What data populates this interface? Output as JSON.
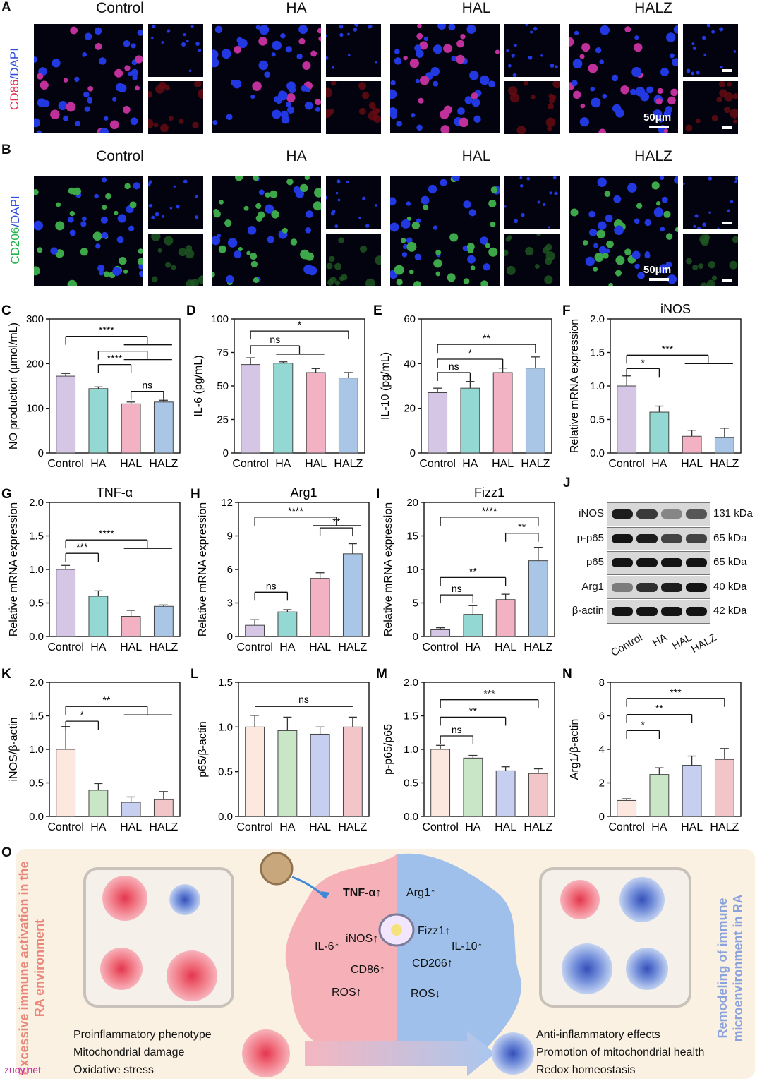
{
  "panelA": {
    "letter": "A",
    "groups": [
      "Control",
      "HA",
      "HAL",
      "HALZ"
    ],
    "stain_red": "CD86",
    "stain_sep": "/",
    "stain_blue": "DAPI",
    "scalebar": "50μm",
    "colors": {
      "red": "#e03050",
      "blue": "#2f4fe0"
    }
  },
  "panelB": {
    "letter": "B",
    "groups": [
      "Control",
      "HA",
      "HAL",
      "HALZ"
    ],
    "stain_green": "CD206",
    "stain_sep": "/",
    "stain_blue": "DAPI",
    "scalebar": "50μm",
    "colors": {
      "green": "#22b34a",
      "blue": "#2f4fe0"
    }
  },
  "charts": [
    {
      "id": "C",
      "letter": "C",
      "type": "bar",
      "title": "",
      "ylabel": "NO production (μmol/mL)",
      "categories": [
        "Control",
        "HA",
        "HAL",
        "HALZ"
      ],
      "values": [
        172,
        144,
        110,
        114
      ],
      "errors": [
        6,
        4,
        4,
        4
      ],
      "ylim": [
        0,
        300
      ],
      "yticks": [
        0,
        100,
        200,
        300
      ],
      "colors": [
        "#d6c6e6",
        "#93d8d2",
        "#f3b2c4",
        "#a9c6e6"
      ],
      "sig": [
        {
          "from": 0,
          "to": [
            2,
            3
          ],
          "label": "****",
          "level": 0.87
        },
        {
          "from": 1,
          "to": [
            2,
            3
          ],
          "label": "",
          "level": 0.76
        },
        {
          "from": 1,
          "to": [
            2
          ],
          "label": "****",
          "level": 0.66
        },
        {
          "from": 2,
          "to": [
            3
          ],
          "label": "ns",
          "level": 0.46
        }
      ]
    },
    {
      "id": "D",
      "letter": "D",
      "type": "bar",
      "title": "",
      "ylabel": "IL-6 (pg/mL)",
      "categories": [
        "Control",
        "HA",
        "HAL",
        "HALZ"
      ],
      "values": [
        66,
        67,
        60,
        56
      ],
      "errors": [
        5,
        1,
        3,
        4
      ],
      "ylim": [
        0,
        100
      ],
      "yticks": [
        0,
        25,
        50,
        75,
        100
      ],
      "colors": [
        "#d6c6e6",
        "#93d8d2",
        "#f3b2c4",
        "#a9c6e6"
      ],
      "sig": [
        {
          "from": 0,
          "to": [
            3
          ],
          "label": "*",
          "level": 0.91
        },
        {
          "from": 0,
          "to": [
            1,
            2
          ],
          "label": "ns",
          "level": 0.8
        }
      ]
    },
    {
      "id": "E",
      "letter": "E",
      "type": "bar",
      "title": "",
      "ylabel": "IL-10 (pg/mL)",
      "categories": [
        "Control",
        "HA",
        "HAL",
        "HALZ"
      ],
      "values": [
        27,
        29,
        36,
        38
      ],
      "errors": [
        2,
        3,
        2,
        5
      ],
      "ylim": [
        0,
        60
      ],
      "yticks": [
        0,
        20,
        40,
        60
      ],
      "colors": [
        "#d6c6e6",
        "#93d8d2",
        "#f3b2c4",
        "#a9c6e6"
      ],
      "sig": [
        {
          "from": 0,
          "to": [
            3
          ],
          "label": "**",
          "level": 0.81
        },
        {
          "from": 0,
          "to": [
            2
          ],
          "label": "*",
          "level": 0.7
        },
        {
          "from": 0,
          "to": [
            1
          ],
          "label": "ns",
          "level": 0.6
        }
      ]
    },
    {
      "id": "F",
      "letter": "F",
      "type": "bar",
      "title": "iNOS",
      "ylabel": "Relative mRNA expression",
      "categories": [
        "Control",
        "HA",
        "HAL",
        "HALZ"
      ],
      "values": [
        1.0,
        0.61,
        0.25,
        0.23
      ],
      "errors": [
        0.15,
        0.09,
        0.09,
        0.14
      ],
      "ylim": [
        0,
        2.0
      ],
      "yticks": [
        0.0,
        0.5,
        1.0,
        1.5,
        2.0
      ],
      "colors": [
        "#d6c6e6",
        "#93d8d2",
        "#f3b2c4",
        "#a9c6e6"
      ],
      "sig": [
        {
          "from": 0,
          "to": [
            2,
            3
          ],
          "label": "***",
          "level": 0.73
        },
        {
          "from": 0,
          "to": [
            1
          ],
          "label": "*",
          "level": 0.63
        }
      ]
    },
    {
      "id": "G",
      "letter": "G",
      "type": "bar",
      "title": "TNF-α",
      "ylabel": "Relative mRNA expression",
      "categories": [
        "Control",
        "HA",
        "HAL",
        "HALZ"
      ],
      "values": [
        1.0,
        0.6,
        0.3,
        0.45
      ],
      "errors": [
        0.06,
        0.08,
        0.09,
        0.02
      ],
      "ylim": [
        0,
        2.0
      ],
      "yticks": [
        0.0,
        0.5,
        1.0,
        1.5,
        2.0
      ],
      "colors": [
        "#d6c6e6",
        "#93d8d2",
        "#f3b2c4",
        "#a9c6e6"
      ],
      "sig": [
        {
          "from": 0,
          "to": [
            2,
            3
          ],
          "label": "****",
          "level": 0.72
        },
        {
          "from": 0,
          "to": [
            1
          ],
          "label": "***",
          "level": 0.62
        }
      ]
    },
    {
      "id": "H",
      "letter": "H",
      "type": "bar",
      "title": "Arg1",
      "ylabel": "Relative mRNA expression",
      "categories": [
        "Control",
        "HA",
        "HAL",
        "HALZ"
      ],
      "values": [
        1.0,
        2.2,
        5.2,
        7.4
      ],
      "errors": [
        0.5,
        0.2,
        0.5,
        0.9
      ],
      "ylim": [
        0,
        12
      ],
      "yticks": [
        0,
        3,
        6,
        9,
        12
      ],
      "colors": [
        "#d6c6e6",
        "#93d8d2",
        "#f3b2c4",
        "#a9c6e6"
      ],
      "sig": [
        {
          "from": 0,
          "to": [
            2,
            3
          ],
          "label": "****",
          "level": 0.89
        },
        {
          "from": 2,
          "to": [
            3
          ],
          "label": "**",
          "level": 0.81
        },
        {
          "from": 0,
          "to": [
            1
          ],
          "label": "ns",
          "level": 0.33
        }
      ]
    },
    {
      "id": "I",
      "letter": "I",
      "type": "bar",
      "title": "Fizz1",
      "ylabel": "Relative mRNA expression",
      "categories": [
        "Control",
        "HA",
        "HAL",
        "HALZ"
      ],
      "values": [
        1.0,
        3.3,
        5.5,
        11.3
      ],
      "errors": [
        0.3,
        1.3,
        0.8,
        2.0
      ],
      "ylim": [
        0,
        20
      ],
      "yticks": [
        0,
        5,
        10,
        15,
        20
      ],
      "colors": [
        "#d6c6e6",
        "#93d8d2",
        "#f3b2c4",
        "#a9c6e6"
      ],
      "sig": [
        {
          "from": 0,
          "to": [
            3
          ],
          "label": "****",
          "level": 0.89
        },
        {
          "from": 2,
          "to": [
            3
          ],
          "label": "**",
          "level": 0.77
        },
        {
          "from": 0,
          "to": [
            2
          ],
          "label": "**",
          "level": 0.44
        },
        {
          "from": 0,
          "to": [
            1
          ],
          "label": "ns",
          "level": 0.31
        }
      ]
    },
    {
      "id": "K",
      "letter": "K",
      "type": "bar",
      "title": "",
      "ylabel": "iNOS/β-actin",
      "categories": [
        "Control",
        "HA",
        "HAL",
        "HALZ"
      ],
      "values": [
        1.0,
        0.39,
        0.21,
        0.25
      ],
      "errors": [
        0.34,
        0.1,
        0.08,
        0.12
      ],
      "ylim": [
        0,
        2.0
      ],
      "yticks": [
        0.0,
        0.5,
        1.0,
        1.5,
        2.0
      ],
      "colors": [
        "#fde8df",
        "#c9e6c6",
        "#c6cff0",
        "#f2c6c9"
      ],
      "sig": [
        {
          "from": 0,
          "to": [
            2,
            3
          ],
          "label": "**",
          "level": 0.82
        },
        {
          "from": 0,
          "to": [
            1
          ],
          "label": "*",
          "level": 0.71
        }
      ]
    },
    {
      "id": "L",
      "letter": "L",
      "type": "bar",
      "title": "",
      "ylabel": "p65/β-actin",
      "categories": [
        "Control",
        "HA",
        "HAL",
        "HALZ"
      ],
      "values": [
        1.0,
        0.96,
        0.92,
        1.0
      ],
      "errors": [
        0.13,
        0.15,
        0.08,
        0.11
      ],
      "ylim": [
        0,
        1.5
      ],
      "yticks": [
        0.0,
        0.5,
        1.0,
        1.5
      ],
      "colors": [
        "#fde8df",
        "#c9e6c6",
        "#c6cff0",
        "#f2c6c9"
      ],
      "sig": [
        {
          "from": 0,
          "to": [
            3
          ],
          "label": "ns",
          "level": 0.82,
          "flat": true
        }
      ]
    },
    {
      "id": "M",
      "letter": "M",
      "type": "bar",
      "title": "",
      "ylabel": "p-p65/p65",
      "categories": [
        "Control",
        "HA",
        "HAL",
        "HALZ"
      ],
      "values": [
        1.0,
        0.87,
        0.68,
        0.64
      ],
      "errors": [
        0.06,
        0.04,
        0.06,
        0.07
      ],
      "ylim": [
        0,
        2.0
      ],
      "yticks": [
        0.0,
        0.5,
        1.0,
        1.5,
        2.0
      ],
      "colors": [
        "#fde8df",
        "#c9e6c6",
        "#c6cff0",
        "#f2c6c9"
      ],
      "sig": [
        {
          "from": 0,
          "to": [
            3
          ],
          "label": "***",
          "level": 0.87
        },
        {
          "from": 0,
          "to": [
            2
          ],
          "label": "**",
          "level": 0.74
        },
        {
          "from": 0,
          "to": [
            1
          ],
          "label": "ns",
          "level": 0.6
        }
      ]
    },
    {
      "id": "N",
      "letter": "N",
      "type": "bar",
      "title": "",
      "ylabel": "Arg1/β-actin",
      "categories": [
        "Control",
        "HA",
        "HAL",
        "HALZ"
      ],
      "values": [
        0.95,
        2.5,
        3.05,
        3.4
      ],
      "errors": [
        0.1,
        0.4,
        0.55,
        0.65
      ],
      "ylim": [
        0,
        8
      ],
      "yticks": [
        0,
        2,
        4,
        6,
        8
      ],
      "colors": [
        "#fde8df",
        "#c9e6c6",
        "#c6cff0",
        "#f2c6c9"
      ],
      "sig": [
        {
          "from": 0,
          "to": [
            3
          ],
          "label": "***",
          "level": 0.88
        },
        {
          "from": 0,
          "to": [
            2
          ],
          "label": "**",
          "level": 0.76
        },
        {
          "from": 0,
          "to": [
            1
          ],
          "label": "*",
          "level": 0.64
        }
      ]
    }
  ],
  "panelJ": {
    "letter": "J",
    "proteins": [
      "iNOS",
      "p-p65",
      "p65",
      "Arg1",
      "β-actin"
    ],
    "kda": [
      "131 kDa",
      "65 kDa",
      "65 kDa",
      "40 kDa",
      "42 kDa"
    ],
    "lanes": [
      "Control",
      "HA",
      "HAL",
      "HALZ"
    ],
    "band_intensity": [
      [
        0.9,
        0.75,
        0.35,
        0.6
      ],
      [
        0.95,
        0.9,
        0.7,
        0.7
      ],
      [
        0.95,
        0.95,
        0.95,
        0.95
      ],
      [
        0.4,
        0.8,
        0.9,
        0.95
      ],
      [
        0.95,
        0.95,
        0.95,
        0.95
      ]
    ]
  },
  "panelO": {
    "letter": "O",
    "left_vertical": "Excessive immune activation in the RA environment",
    "right_vertical": "Remodeling of immune microenvironment in RA",
    "left_list": [
      "Proinflammatory phenotype",
      "Mitochondrial damage",
      "Oxidative stress"
    ],
    "right_list": [
      "Anti-inflammatory effects",
      "Promotion of mitochondrial health",
      "Redox homeostasis"
    ],
    "m1_markers": [
      {
        "t": "TNF-α",
        "arrow": "↑"
      },
      {
        "t": "iNOS",
        "arrow": "↑"
      },
      {
        "t": "IL-6",
        "arrow": "↑"
      },
      {
        "t": "CD86",
        "arrow": "↑"
      },
      {
        "t": "ROS",
        "arrow": "↑"
      }
    ],
    "m2_markers": [
      {
        "t": "Arg1",
        "arrow": "↑"
      },
      {
        "t": "Fizz1",
        "arrow": "↑"
      },
      {
        "t": "IL-10",
        "arrow": "↑"
      },
      {
        "t": "CD206",
        "arrow": "↑"
      },
      {
        "t": "ROS",
        "arrow": "↓"
      }
    ],
    "colors": {
      "bg": "#fbf1e2",
      "m1": "#f2a3ad",
      "m2": "#8fb4e6",
      "left_text": "#e8877a",
      "right_text": "#8aa3dc"
    }
  },
  "watermark": "zuoy.net"
}
